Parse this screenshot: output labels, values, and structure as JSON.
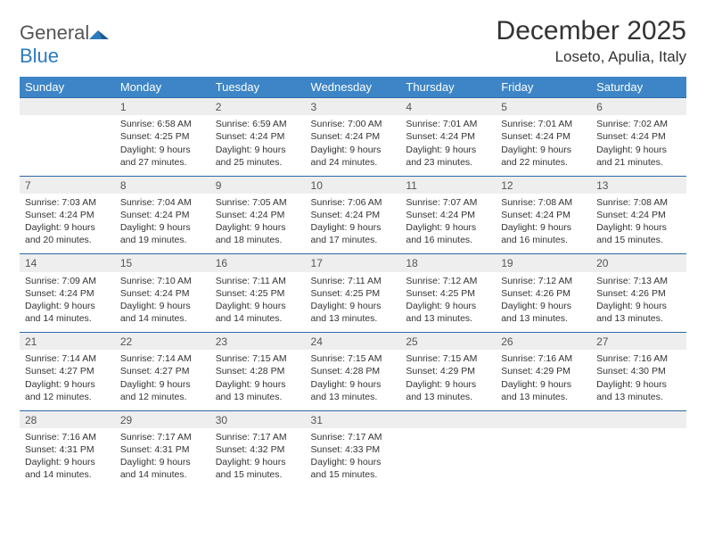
{
  "logo": {
    "word1": "General",
    "word2": "Blue"
  },
  "title": "December 2025",
  "location": "Loseto, Apulia, Italy",
  "colors": {
    "header_bg": "#3d85c6",
    "header_border": "#2a6aa8",
    "daynum_bg": "#eeeeee",
    "text": "#333333",
    "logo_gray": "#555555",
    "logo_blue": "#2b7bbf"
  },
  "day_labels": [
    "Sunday",
    "Monday",
    "Tuesday",
    "Wednesday",
    "Thursday",
    "Friday",
    "Saturday"
  ],
  "weeks": [
    {
      "nums": [
        "",
        "1",
        "2",
        "3",
        "4",
        "5",
        "6"
      ],
      "cells": [
        {
          "sunrise": "",
          "sunset": "",
          "daylight": ""
        },
        {
          "sunrise": "Sunrise: 6:58 AM",
          "sunset": "Sunset: 4:25 PM",
          "daylight": "Daylight: 9 hours and 27 minutes."
        },
        {
          "sunrise": "Sunrise: 6:59 AM",
          "sunset": "Sunset: 4:24 PM",
          "daylight": "Daylight: 9 hours and 25 minutes."
        },
        {
          "sunrise": "Sunrise: 7:00 AM",
          "sunset": "Sunset: 4:24 PM",
          "daylight": "Daylight: 9 hours and 24 minutes."
        },
        {
          "sunrise": "Sunrise: 7:01 AM",
          "sunset": "Sunset: 4:24 PM",
          "daylight": "Daylight: 9 hours and 23 minutes."
        },
        {
          "sunrise": "Sunrise: 7:01 AM",
          "sunset": "Sunset: 4:24 PM",
          "daylight": "Daylight: 9 hours and 22 minutes."
        },
        {
          "sunrise": "Sunrise: 7:02 AM",
          "sunset": "Sunset: 4:24 PM",
          "daylight": "Daylight: 9 hours and 21 minutes."
        }
      ]
    },
    {
      "nums": [
        "7",
        "8",
        "9",
        "10",
        "11",
        "12",
        "13"
      ],
      "cells": [
        {
          "sunrise": "Sunrise: 7:03 AM",
          "sunset": "Sunset: 4:24 PM",
          "daylight": "Daylight: 9 hours and 20 minutes."
        },
        {
          "sunrise": "Sunrise: 7:04 AM",
          "sunset": "Sunset: 4:24 PM",
          "daylight": "Daylight: 9 hours and 19 minutes."
        },
        {
          "sunrise": "Sunrise: 7:05 AM",
          "sunset": "Sunset: 4:24 PM",
          "daylight": "Daylight: 9 hours and 18 minutes."
        },
        {
          "sunrise": "Sunrise: 7:06 AM",
          "sunset": "Sunset: 4:24 PM",
          "daylight": "Daylight: 9 hours and 17 minutes."
        },
        {
          "sunrise": "Sunrise: 7:07 AM",
          "sunset": "Sunset: 4:24 PM",
          "daylight": "Daylight: 9 hours and 16 minutes."
        },
        {
          "sunrise": "Sunrise: 7:08 AM",
          "sunset": "Sunset: 4:24 PM",
          "daylight": "Daylight: 9 hours and 16 minutes."
        },
        {
          "sunrise": "Sunrise: 7:08 AM",
          "sunset": "Sunset: 4:24 PM",
          "daylight": "Daylight: 9 hours and 15 minutes."
        }
      ]
    },
    {
      "nums": [
        "14",
        "15",
        "16",
        "17",
        "18",
        "19",
        "20"
      ],
      "cells": [
        {
          "sunrise": "Sunrise: 7:09 AM",
          "sunset": "Sunset: 4:24 PM",
          "daylight": "Daylight: 9 hours and 14 minutes."
        },
        {
          "sunrise": "Sunrise: 7:10 AM",
          "sunset": "Sunset: 4:24 PM",
          "daylight": "Daylight: 9 hours and 14 minutes."
        },
        {
          "sunrise": "Sunrise: 7:11 AM",
          "sunset": "Sunset: 4:25 PM",
          "daylight": "Daylight: 9 hours and 14 minutes."
        },
        {
          "sunrise": "Sunrise: 7:11 AM",
          "sunset": "Sunset: 4:25 PM",
          "daylight": "Daylight: 9 hours and 13 minutes."
        },
        {
          "sunrise": "Sunrise: 7:12 AM",
          "sunset": "Sunset: 4:25 PM",
          "daylight": "Daylight: 9 hours and 13 minutes."
        },
        {
          "sunrise": "Sunrise: 7:12 AM",
          "sunset": "Sunset: 4:26 PM",
          "daylight": "Daylight: 9 hours and 13 minutes."
        },
        {
          "sunrise": "Sunrise: 7:13 AM",
          "sunset": "Sunset: 4:26 PM",
          "daylight": "Daylight: 9 hours and 13 minutes."
        }
      ]
    },
    {
      "nums": [
        "21",
        "22",
        "23",
        "24",
        "25",
        "26",
        "27"
      ],
      "cells": [
        {
          "sunrise": "Sunrise: 7:14 AM",
          "sunset": "Sunset: 4:27 PM",
          "daylight": "Daylight: 9 hours and 12 minutes."
        },
        {
          "sunrise": "Sunrise: 7:14 AM",
          "sunset": "Sunset: 4:27 PM",
          "daylight": "Daylight: 9 hours and 12 minutes."
        },
        {
          "sunrise": "Sunrise: 7:15 AM",
          "sunset": "Sunset: 4:28 PM",
          "daylight": "Daylight: 9 hours and 13 minutes."
        },
        {
          "sunrise": "Sunrise: 7:15 AM",
          "sunset": "Sunset: 4:28 PM",
          "daylight": "Daylight: 9 hours and 13 minutes."
        },
        {
          "sunrise": "Sunrise: 7:15 AM",
          "sunset": "Sunset: 4:29 PM",
          "daylight": "Daylight: 9 hours and 13 minutes."
        },
        {
          "sunrise": "Sunrise: 7:16 AM",
          "sunset": "Sunset: 4:29 PM",
          "daylight": "Daylight: 9 hours and 13 minutes."
        },
        {
          "sunrise": "Sunrise: 7:16 AM",
          "sunset": "Sunset: 4:30 PM",
          "daylight": "Daylight: 9 hours and 13 minutes."
        }
      ]
    },
    {
      "nums": [
        "28",
        "29",
        "30",
        "31",
        "",
        "",
        ""
      ],
      "cells": [
        {
          "sunrise": "Sunrise: 7:16 AM",
          "sunset": "Sunset: 4:31 PM",
          "daylight": "Daylight: 9 hours and 14 minutes."
        },
        {
          "sunrise": "Sunrise: 7:17 AM",
          "sunset": "Sunset: 4:31 PM",
          "daylight": "Daylight: 9 hours and 14 minutes."
        },
        {
          "sunrise": "Sunrise: 7:17 AM",
          "sunset": "Sunset: 4:32 PM",
          "daylight": "Daylight: 9 hours and 15 minutes."
        },
        {
          "sunrise": "Sunrise: 7:17 AM",
          "sunset": "Sunset: 4:33 PM",
          "daylight": "Daylight: 9 hours and 15 minutes."
        },
        {
          "sunrise": "",
          "sunset": "",
          "daylight": ""
        },
        {
          "sunrise": "",
          "sunset": "",
          "daylight": ""
        },
        {
          "sunrise": "",
          "sunset": "",
          "daylight": ""
        }
      ]
    }
  ]
}
